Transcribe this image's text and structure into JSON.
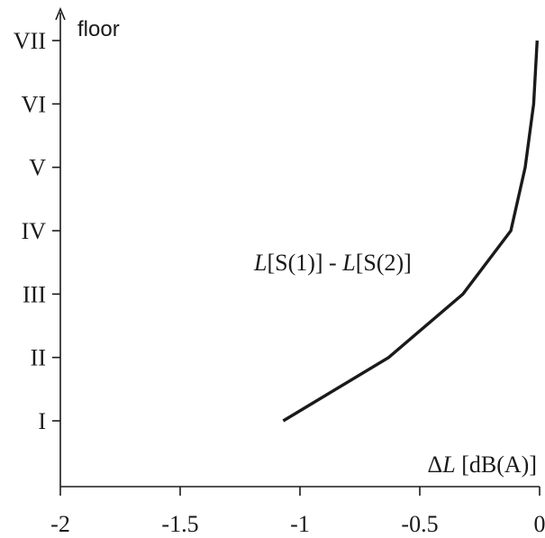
{
  "chart_data": {
    "type": "line",
    "xlabel_symbol": "Δ",
    "xlabel_var": "L",
    "xlabel_unit": " [dB(A)]",
    "ylabel": "floor",
    "xlim": [
      -2,
      0
    ],
    "x_ticks": [
      -2,
      -1.5,
      -1,
      -0.5,
      0
    ],
    "x_tick_labels": [
      "-2",
      "-1.5",
      "-1",
      "-0.5",
      "0"
    ],
    "y_categories": [
      "I",
      "II",
      "III",
      "IV",
      "V",
      "VI",
      "VII"
    ],
    "series": [
      {
        "label_parts": [
          "L",
          "[S(1)] - ",
          "L",
          "[S(2)]"
        ],
        "x": [
          -1.07,
          -0.63,
          -0.32,
          -0.12,
          -0.06,
          -0.025,
          -0.01
        ],
        "y": [
          "I",
          "II",
          "III",
          "IV",
          "V",
          "VI",
          "VII"
        ]
      }
    ],
    "grid": false,
    "legend": "none",
    "line_color": "#1a1a1a"
  }
}
